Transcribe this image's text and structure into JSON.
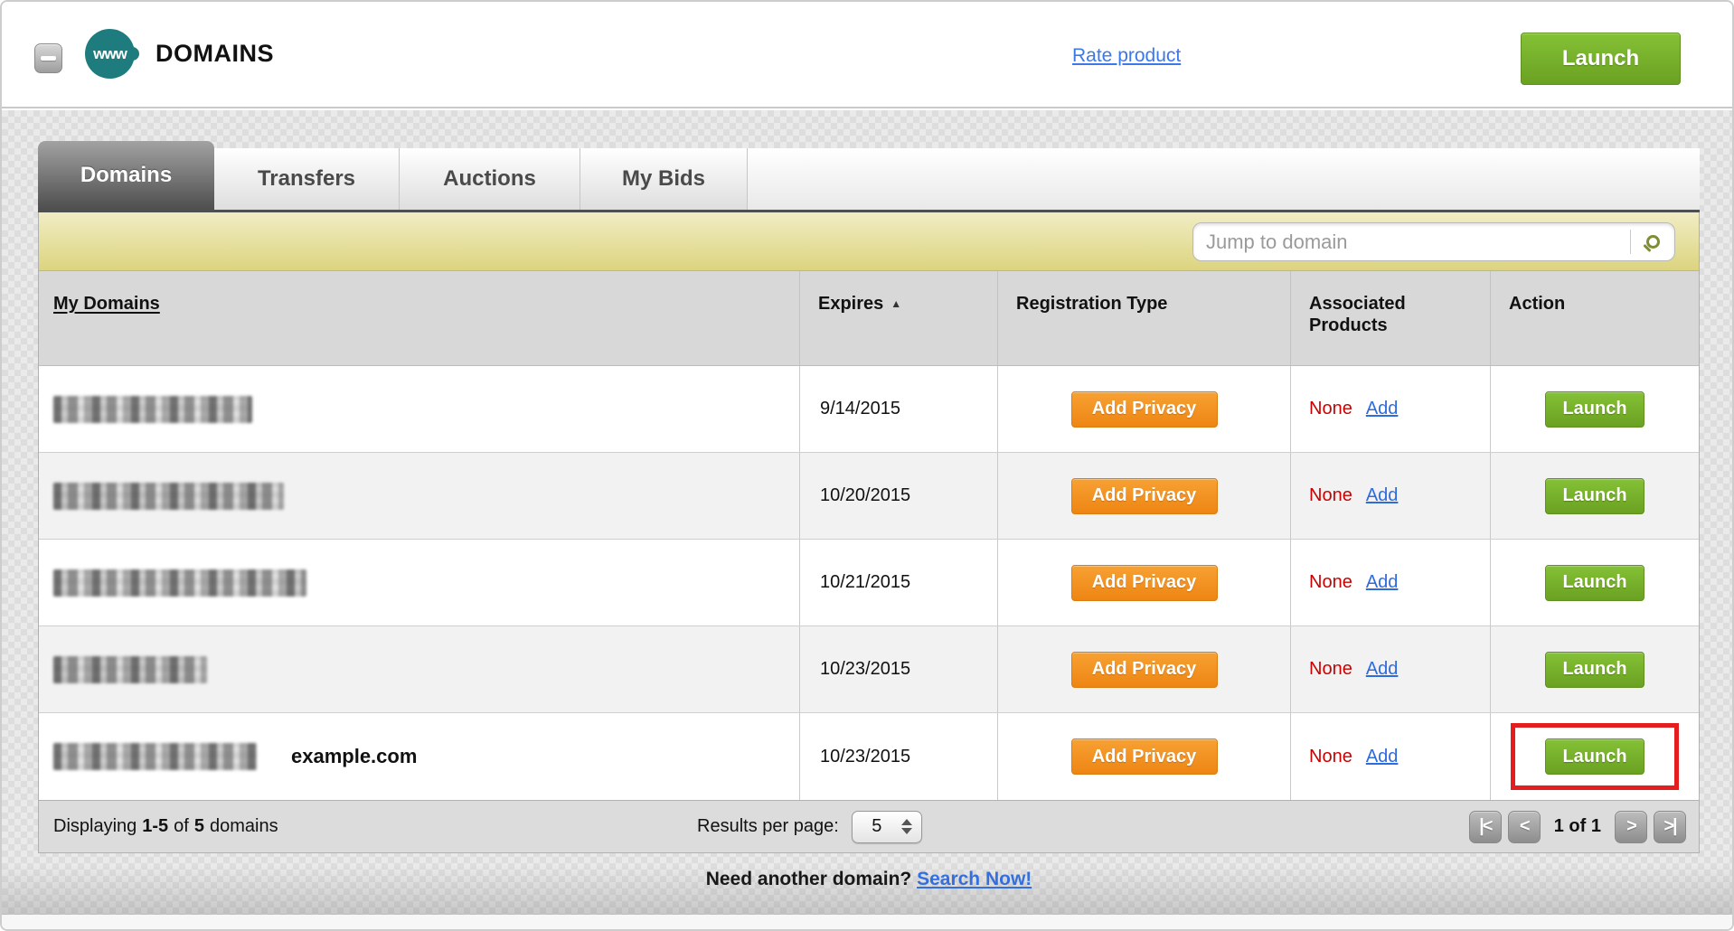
{
  "header": {
    "title": "DOMAINS",
    "icon_text": "www",
    "rate_link": "Rate product",
    "launch_button": "Launch"
  },
  "tabs": [
    {
      "label": "Domains",
      "active": true
    },
    {
      "label": "Transfers",
      "active": false
    },
    {
      "label": "Auctions",
      "active": false
    },
    {
      "label": "My Bids",
      "active": false
    }
  ],
  "toolbar": {
    "search_placeholder": "Jump to domain"
  },
  "table": {
    "columns": [
      {
        "label": "My Domains"
      },
      {
        "label": "Expires",
        "sorted": true,
        "sort_direction": "asc"
      },
      {
        "label": "Registration Type"
      },
      {
        "label": "Associated Products"
      },
      {
        "label": "Action"
      }
    ],
    "sort_indicator": "▲",
    "rows": [
      {
        "domain": "(redacted)",
        "blur_width": 220,
        "expires": "9/14/2015",
        "registration_button": "Add Privacy",
        "associated_value": "None",
        "associated_link": "Add",
        "action_button": "Launch",
        "highlighted": false
      },
      {
        "domain": "(redacted)",
        "blur_width": 255,
        "expires": "10/20/2015",
        "registration_button": "Add Privacy",
        "associated_value": "None",
        "associated_link": "Add",
        "action_button": "Launch",
        "highlighted": false
      },
      {
        "domain": "(redacted)",
        "blur_width": 280,
        "expires": "10/21/2015",
        "registration_button": "Add Privacy",
        "associated_value": "None",
        "associated_link": "Add",
        "action_button": "Launch",
        "highlighted": false
      },
      {
        "domain": "(redacted)",
        "blur_width": 170,
        "expires": "10/23/2015",
        "registration_button": "Add Privacy",
        "associated_value": "None",
        "associated_link": "Add",
        "action_button": "Launch",
        "highlighted": false
      },
      {
        "domain": "(redacted)",
        "domain_label": "example.com",
        "blur_width": 225,
        "expires": "10/23/2015",
        "registration_button": "Add Privacy",
        "associated_value": "None",
        "associated_link": "Add",
        "action_button": "Launch",
        "highlighted": true
      }
    ]
  },
  "footer": {
    "displaying_label": "Displaying",
    "range": "1-5",
    "of_label": "of",
    "total": "5",
    "domains_label": "domains",
    "results_per_page_label": "Results per page:",
    "results_per_page_value": "5",
    "first_button": "|<",
    "prev_button": "<",
    "page_status": "1 of 1",
    "next_button": ">",
    "last_button": ">|"
  },
  "below": {
    "prompt": "Need another domain?",
    "link": "Search Now!"
  },
  "colors": {
    "accent_green": "#74b42a",
    "accent_orange": "#f08a1d",
    "link_blue": "#2e6fe0",
    "alert_red": "#cc0000",
    "highlight_red": "#e41e1e",
    "tab_active_dark": "#4f4f4f",
    "toolbar_yellow": "#e3dc8f"
  }
}
